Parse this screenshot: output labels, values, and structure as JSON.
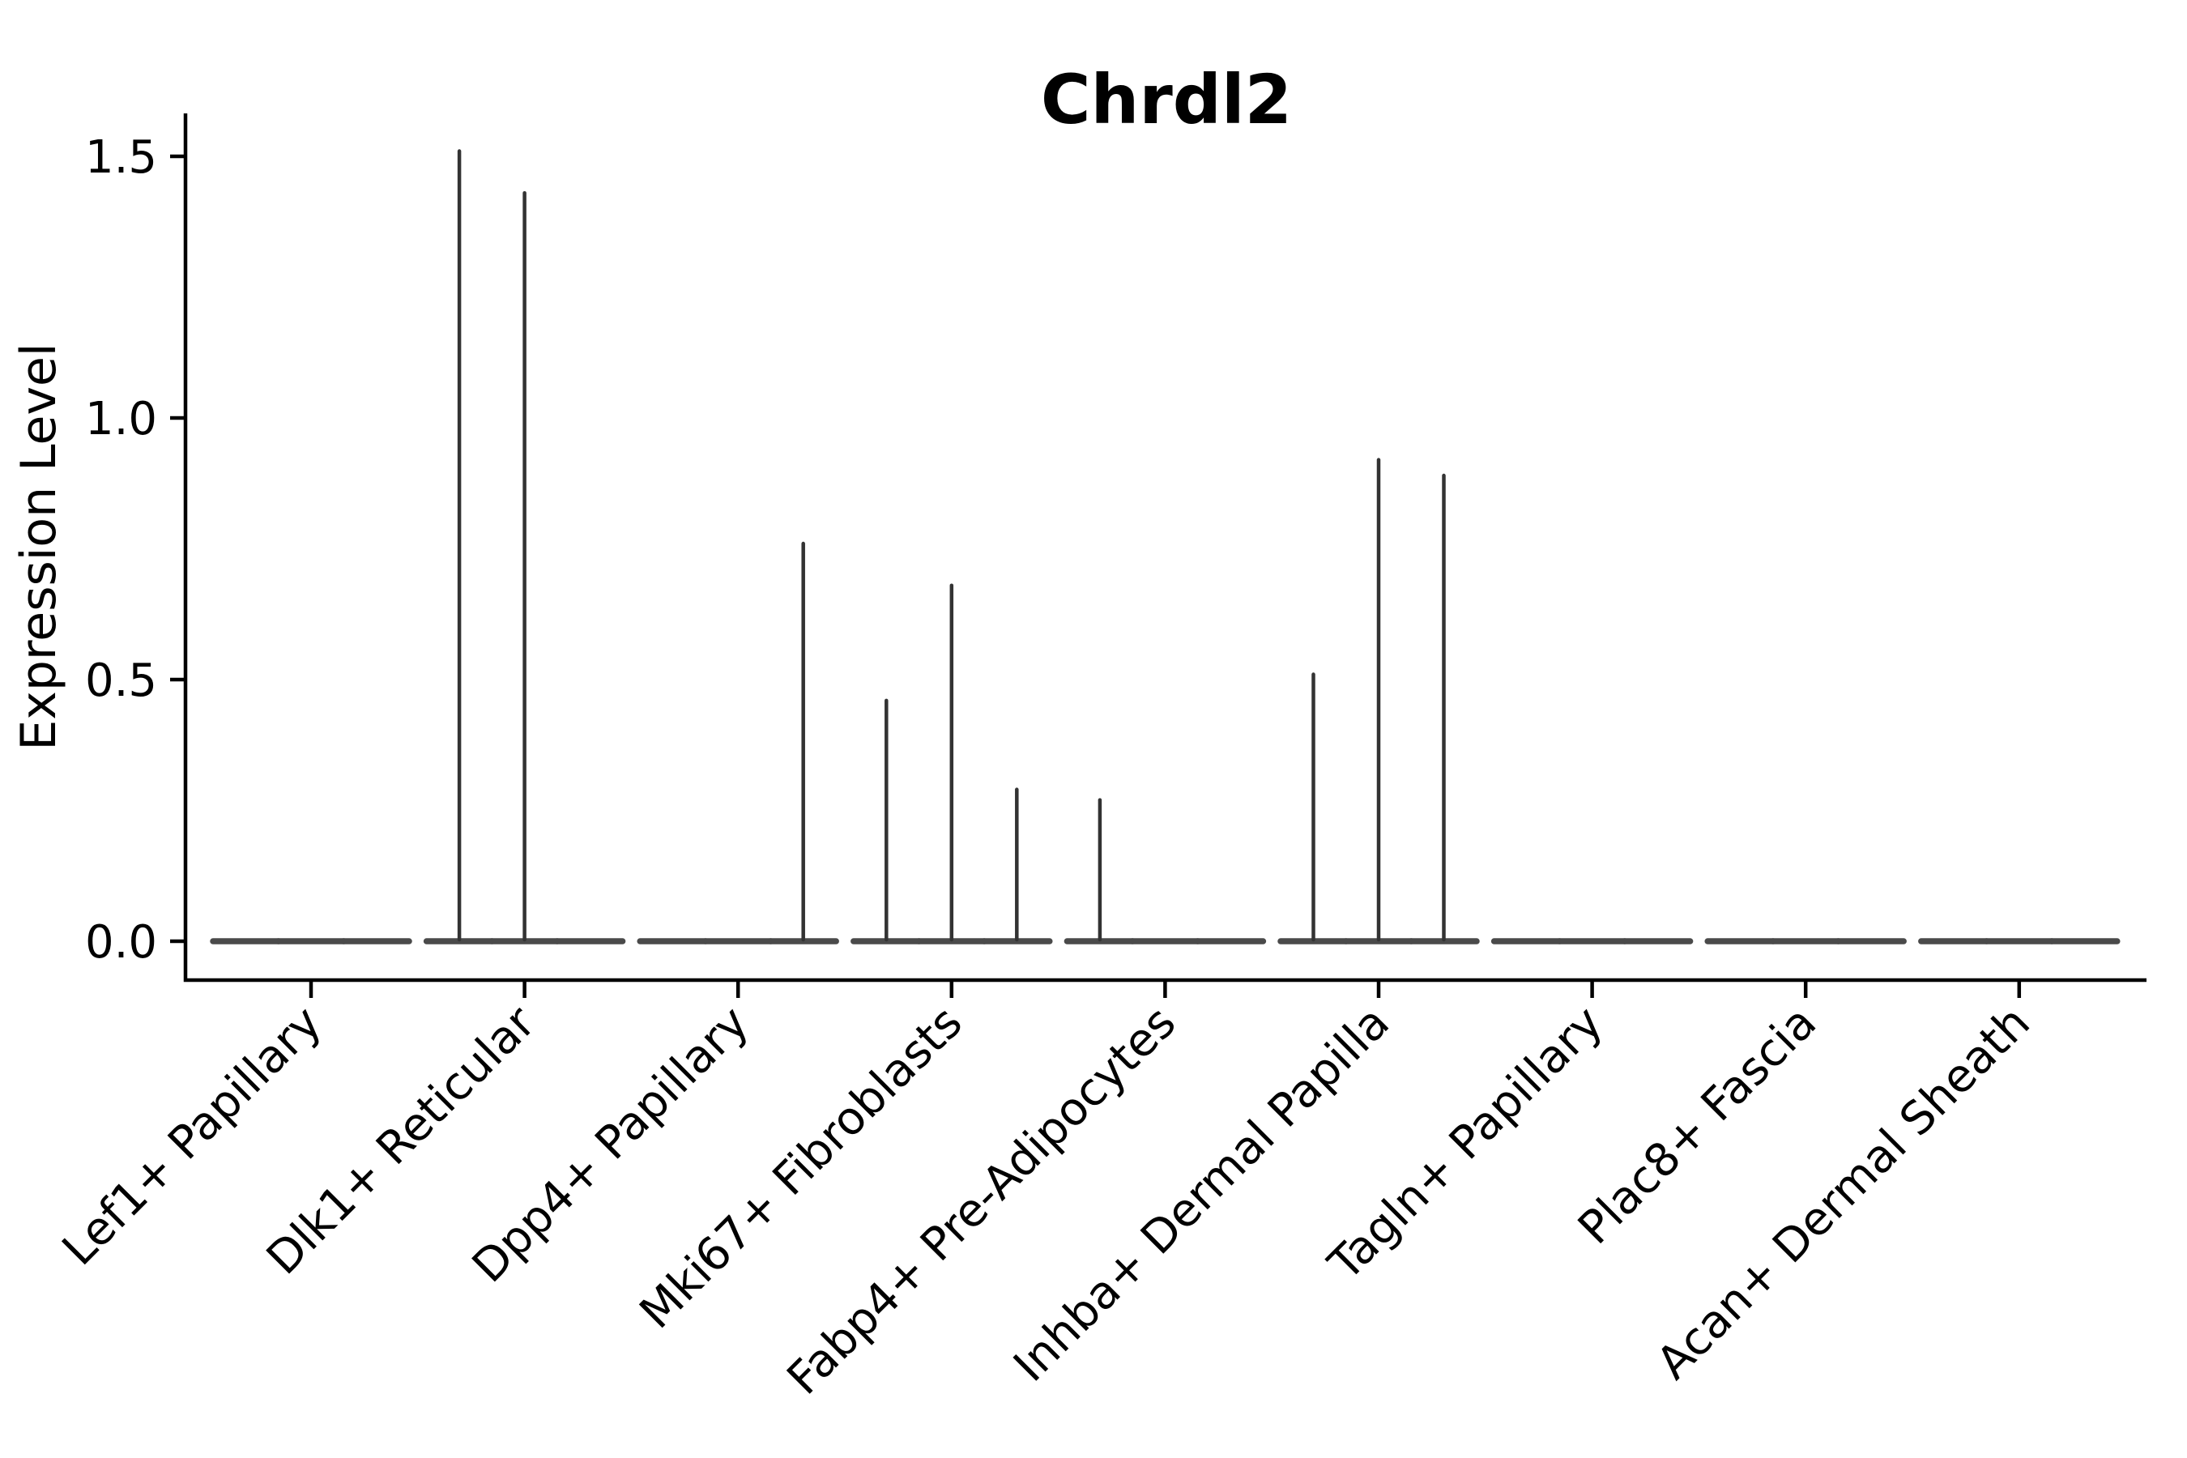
{
  "chart_data": {
    "type": "violin",
    "title": "Chrdl2",
    "ylabel": "Expression Level",
    "xlabel": "",
    "grid": false,
    "legend": "none",
    "ylim": [
      -0.07,
      1.58
    ],
    "yticks": [
      0.0,
      0.5,
      1.0,
      1.5
    ],
    "ytick_labels": [
      "0.0",
      "0.5",
      "1.0",
      "1.5"
    ],
    "categories": [
      "Lef1+ Papillary",
      "Dlk1+ Reticular",
      "Dpp4+ Papillary",
      "Mki67+ Fibroblasts",
      "Fabp4+ Pre-Adipocytes",
      "Inhba+ Dermal Papilla",
      "Tagln+ Papillary",
      "Plac8+ Fascia",
      "Acan+ Dermal Sheath"
    ],
    "violins_per_category": 3,
    "description": "Violin plot of Chrdl2 expression; every violin is a flat line at 0 with thin vertical spikes rising to the maximum expression value of rare expressing cells",
    "violins": [
      {
        "category": "Lef1+ Papillary",
        "spike_maxima": [
          0,
          0,
          0
        ]
      },
      {
        "category": "Dlk1+ Reticular",
        "spike_maxima": [
          1.51,
          1.43,
          0
        ]
      },
      {
        "category": "Dpp4+ Papillary",
        "spike_maxima": [
          0,
          0,
          0.76
        ]
      },
      {
        "category": "Mki67+ Fibroblasts",
        "spike_maxima": [
          0.46,
          0.68,
          0.29
        ]
      },
      {
        "category": "Fabp4+ Pre-Adipocytes",
        "spike_maxima": [
          0.27,
          0,
          0
        ]
      },
      {
        "category": "Inhba+ Dermal Papilla",
        "spike_maxima": [
          0.51,
          0.92,
          0.89
        ]
      },
      {
        "category": "Tagln+ Papillary",
        "spike_maxima": [
          0,
          0,
          0
        ]
      },
      {
        "category": "Plac8+ Fascia",
        "spike_maxima": [
          0,
          0,
          0
        ]
      },
      {
        "category": "Acan+ Dermal Sheath",
        "spike_maxima": [
          0,
          0,
          0
        ]
      }
    ],
    "colors": {
      "spine": "#000000",
      "tick": "#000000",
      "text": "#000000",
      "violin_baseline": "#4a4a4a",
      "violin_spike": "#333333",
      "background": "#ffffff"
    }
  }
}
